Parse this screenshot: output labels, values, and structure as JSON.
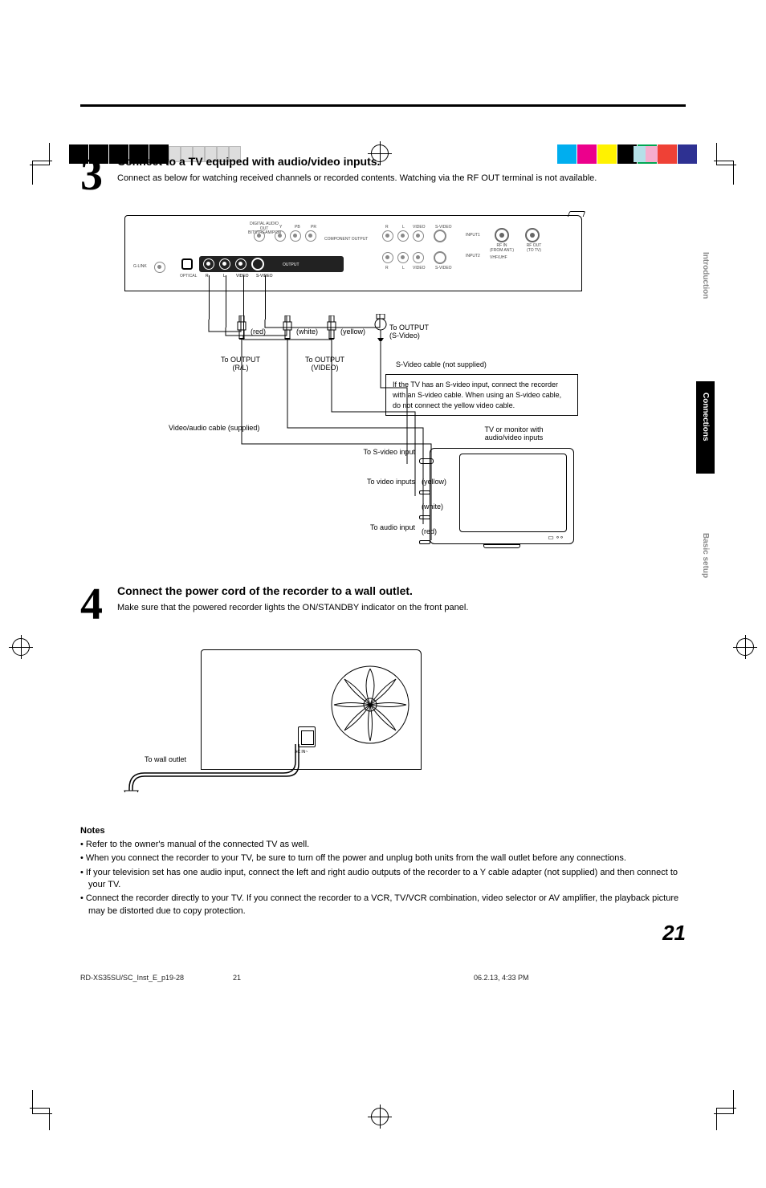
{
  "crop_colors": {
    "bw": [
      "#000000",
      "#000000",
      "#000000",
      "#000000",
      "#000000"
    ],
    "light": [
      "#dddddd",
      "#dddddd",
      "#dddddd",
      "#dddddd",
      "#dddddd",
      "#dddddd"
    ],
    "cmyk": [
      "#00aeef",
      "#ec008c",
      "#fff200",
      "#000000",
      "#00a651",
      "#ef4136",
      "#2e3192",
      "#b5e0e8",
      "#f6adcd"
    ]
  },
  "step3": {
    "num": "3",
    "title": "Connect to a TV equiped with audio/video inputs.",
    "text": "Connect as below for watching received channels or recorded contents. Watching via the RF OUT terminal is not available."
  },
  "diagram3": {
    "panel_labels": {
      "digital": "DIGITAL AUDIO\nOUT\nBITSTREAM/PCM",
      "component": "COMPONENT OUTPUT",
      "ypbpr_y": "Y",
      "ypbpr_pb": "PB",
      "ypbpr_pr": "PR",
      "glink": "G-LINK",
      "optical": "OPTICAL",
      "rlvideo_r": "R",
      "rlvideo_l": "L",
      "rlvideo_v": "VIDEO",
      "svideo": "S-VIDEO",
      "output": "OUTPUT",
      "r2": "R",
      "l2": "L",
      "video2": "VIDEO",
      "svideo_in": "S-VIDEO",
      "input1": "INPUT1",
      "input2": "INPUT2",
      "rfin1": "RF IN\n(FROM ANT.)",
      "rfin2": "VHF/UHF",
      "rfout": "RF OUT\n(TO TV)"
    },
    "wires": {
      "red": "(red)",
      "white": "(white)",
      "yellow": "(yellow)",
      "out_rl": "To OUTPUT\n(R/L)",
      "out_video": "To OUTPUT\n(VIDEO)",
      "out_svideo": "To OUTPUT\n(S-Video)",
      "cable_supplied": "Video/audio cable (supplied)",
      "svideo_cable": "S-Video cable (not supplied)"
    },
    "textbox": "If the TV has an S-video input, connect the recorder with an S-video cable. When using an S-video cable, do not connect the yellow video cable.",
    "tv_label": "TV or monitor with\naudio/video inputs",
    "to_svideo": "To S-video input",
    "to_video": "To video inputs",
    "to_audio": "To audio input",
    "jack_yellow": "(yellow)",
    "jack_white": "(white)",
    "jack_red": "(red)"
  },
  "step4": {
    "num": "4",
    "title": "Connect the power cord of the recorder to a wall outlet.",
    "text": "Make sure that the powered recorder lights the ON/STANDBY indicator on the front panel."
  },
  "diagram4": {
    "acin": "AC IN~",
    "to_wall": "To wall outlet"
  },
  "notes": {
    "title": "Notes",
    "items": [
      "Refer to the owner's manual of the connected TV as well.",
      "When you connect the recorder to your TV, be sure to turn off the power and unplug both units from the wall outlet before any connections.",
      "If your television set has one audio input, connect the left and right audio outputs of the recorder to a Y cable adapter (not supplied) and then connect to your TV.",
      "Connect the recorder directly to your TV.  If you connect the recorder to a VCR, TV/VCR combination, video selector or AV amplifier, the playback picture may be distorted due to copy protection."
    ]
  },
  "pagenum": "21",
  "tabs": {
    "intro": "Introduction",
    "conn": "Connections",
    "basic": "Basic setup"
  },
  "footer": {
    "doc": "RD-XS35SU/SC_Inst_E_p19-28",
    "page": "21",
    "date": "06.2.13, 4:33 PM"
  }
}
